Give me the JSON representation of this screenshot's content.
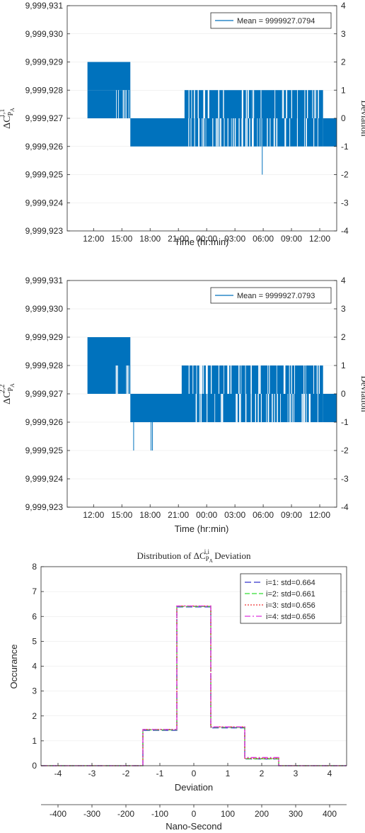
{
  "chart_data": [
    {
      "type": "bar",
      "title": "",
      "ylabel": "ΔC",
      "ylabel_sup": "1,1",
      "ylabel_sub": "P",
      "ylabel_subsub": "A",
      "xlabel": "Time (hr:min)",
      "y2label": "Deviation",
      "ylim": [
        9999923,
        9999931
      ],
      "y2lim": [
        -4,
        4
      ],
      "yticks": [
        "9,999,923",
        "9,999,924",
        "9,999,925",
        "9,999,926",
        "9,999,927",
        "9,999,928",
        "9,999,929",
        "9,999,930",
        "9,999,931"
      ],
      "y2ticks": [
        "-4",
        "-3",
        "-2",
        "-1",
        "0",
        "1",
        "2",
        "3",
        "4"
      ],
      "xticks": [
        "12:00",
        "15:00",
        "18:00",
        "21:00",
        "00:00",
        "03:00",
        "06:00",
        "09:00",
        "12:00"
      ],
      "xlim_hours": [
        9.2,
        37.8
      ],
      "xtick_hours": [
        12,
        15,
        18,
        21,
        24,
        27,
        30,
        33,
        36
      ],
      "legend": "Mean = 9999927.0794",
      "legend_position": "top-right",
      "mean": 9999927.0794,
      "color": "#0072BD",
      "series": [
        {
          "t_hours": [
            11.35,
            15.9
          ],
          "deviation": 1
        },
        {
          "t_hours": [
            15.9,
            36.35
          ],
          "deviation": -1
        },
        {
          "t_hours": [
            21.65,
            36.35
          ],
          "deviation": 1
        },
        {
          "t_hours": [
            36.35,
            37.8
          ],
          "deviation": -1
        },
        {
          "t_hours": [
            11.35,
            15.9
          ],
          "deviation": 2
        }
      ],
      "spikes": [
        {
          "t_hours": 29.9,
          "deviation": -2
        }
      ]
    },
    {
      "type": "bar",
      "title": "",
      "ylabel": "ΔC",
      "ylabel_sup": "2,2",
      "ylabel_sub": "P",
      "ylabel_subsub": "A",
      "xlabel": "Time (hr:min)",
      "y2label": "Deviation",
      "ylim": [
        9999923,
        9999931
      ],
      "y2lim": [
        -4,
        4
      ],
      "yticks": [
        "9,999,923",
        "9,999,924",
        "9,999,925",
        "9,999,926",
        "9,999,927",
        "9,999,928",
        "9,999,929",
        "9,999,930",
        "9,999,931"
      ],
      "y2ticks": [
        "-4",
        "-3",
        "-2",
        "-1",
        "0",
        "1",
        "2",
        "3",
        "4"
      ],
      "xticks": [
        "12:00",
        "15:00",
        "18:00",
        "21:00",
        "00:00",
        "03:00",
        "06:00",
        "09:00",
        "12:00"
      ],
      "xlim_hours": [
        9.2,
        37.8
      ],
      "xtick_hours": [
        12,
        15,
        18,
        21,
        24,
        27,
        30,
        33,
        36
      ],
      "legend": "Mean = 9999927.0793",
      "legend_position": "top-right",
      "mean": 9999927.0793,
      "color": "#0072BD",
      "series": [
        {
          "t_hours": [
            11.35,
            15.9
          ],
          "deviation": 1
        },
        {
          "t_hours": [
            15.9,
            36.35
          ],
          "deviation": -1
        },
        {
          "t_hours": [
            21.35,
            36.35
          ],
          "deviation": 1
        },
        {
          "t_hours": [
            36.35,
            37.8
          ],
          "deviation": -1
        },
        {
          "t_hours": [
            11.35,
            15.9
          ],
          "deviation": 2
        }
      ],
      "spikes": [
        {
          "t_hours": 16.25,
          "deviation": -2
        },
        {
          "t_hours": 18.1,
          "deviation": -2
        },
        {
          "t_hours": 18.25,
          "deviation": -2
        }
      ]
    },
    {
      "type": "line",
      "title": "Distribution of ΔC",
      "title_sup": "i,i",
      "title_sub": "P",
      "title_subsub": "A",
      "title_suffix": " Deviation",
      "xlabel": "Deviation",
      "ylabel": "Occurance",
      "x2label": "Nano-Second",
      "xlim": [
        -4.5,
        4.5
      ],
      "ylim": [
        0,
        8
      ],
      "xticks": [
        -4,
        -3,
        -2,
        -1,
        0,
        1,
        2,
        3,
        4
      ],
      "yticks": [
        0,
        1,
        2,
        3,
        4,
        5,
        6,
        7,
        8
      ],
      "x2ticks": [
        -400,
        -300,
        -200,
        -100,
        0,
        100,
        200,
        300,
        400
      ],
      "x2lim": [
        -450,
        450
      ],
      "legend_position": "top-right",
      "categories": [
        -2,
        -1,
        0,
        1,
        2,
        3
      ],
      "series": [
        {
          "name": "i=1: std=0.664",
          "values": [
            0,
            1.42,
            6.38,
            1.52,
            0.27,
            0
          ],
          "color": "#3333CC",
          "dash": "9,4"
        },
        {
          "name": "i=2: std=0.661",
          "values": [
            0,
            1.44,
            6.4,
            1.54,
            0.28,
            0
          ],
          "color": "#33DD33",
          "dash": "7,3"
        },
        {
          "name": "i=3: std=0.656",
          "values": [
            0,
            1.46,
            6.42,
            1.56,
            0.3,
            0
          ],
          "color": "#EE3333",
          "dash": "2,2"
        },
        {
          "name": "i=4: std=0.656",
          "values": [
            0,
            1.46,
            6.42,
            1.56,
            0.33,
            0
          ],
          "color": "#DD33DD",
          "dash": "8,3,2,3"
        }
      ]
    }
  ]
}
